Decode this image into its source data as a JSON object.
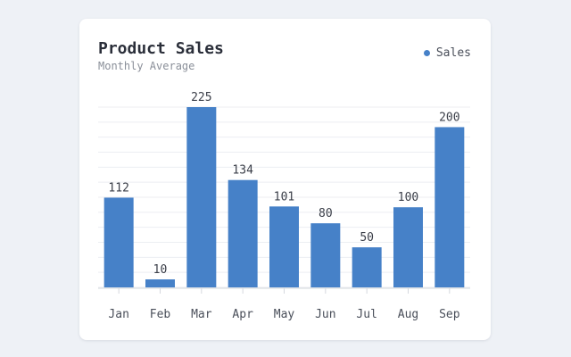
{
  "chart_data": {
    "type": "bar",
    "title": "Product Sales",
    "subtitle": "Monthly Average",
    "categories": [
      "Jan",
      "Feb",
      "Mar",
      "Apr",
      "May",
      "Jun",
      "Jul",
      "Aug",
      "Sep"
    ],
    "series": [
      {
        "name": "Sales",
        "values": [
          112,
          10,
          225,
          134,
          101,
          80,
          50,
          100,
          200
        ],
        "color": "#4681c8"
      }
    ],
    "xlabel": "",
    "ylabel": "",
    "ylim": [
      0,
      225
    ],
    "grid": true,
    "legend_position": "top-right"
  }
}
